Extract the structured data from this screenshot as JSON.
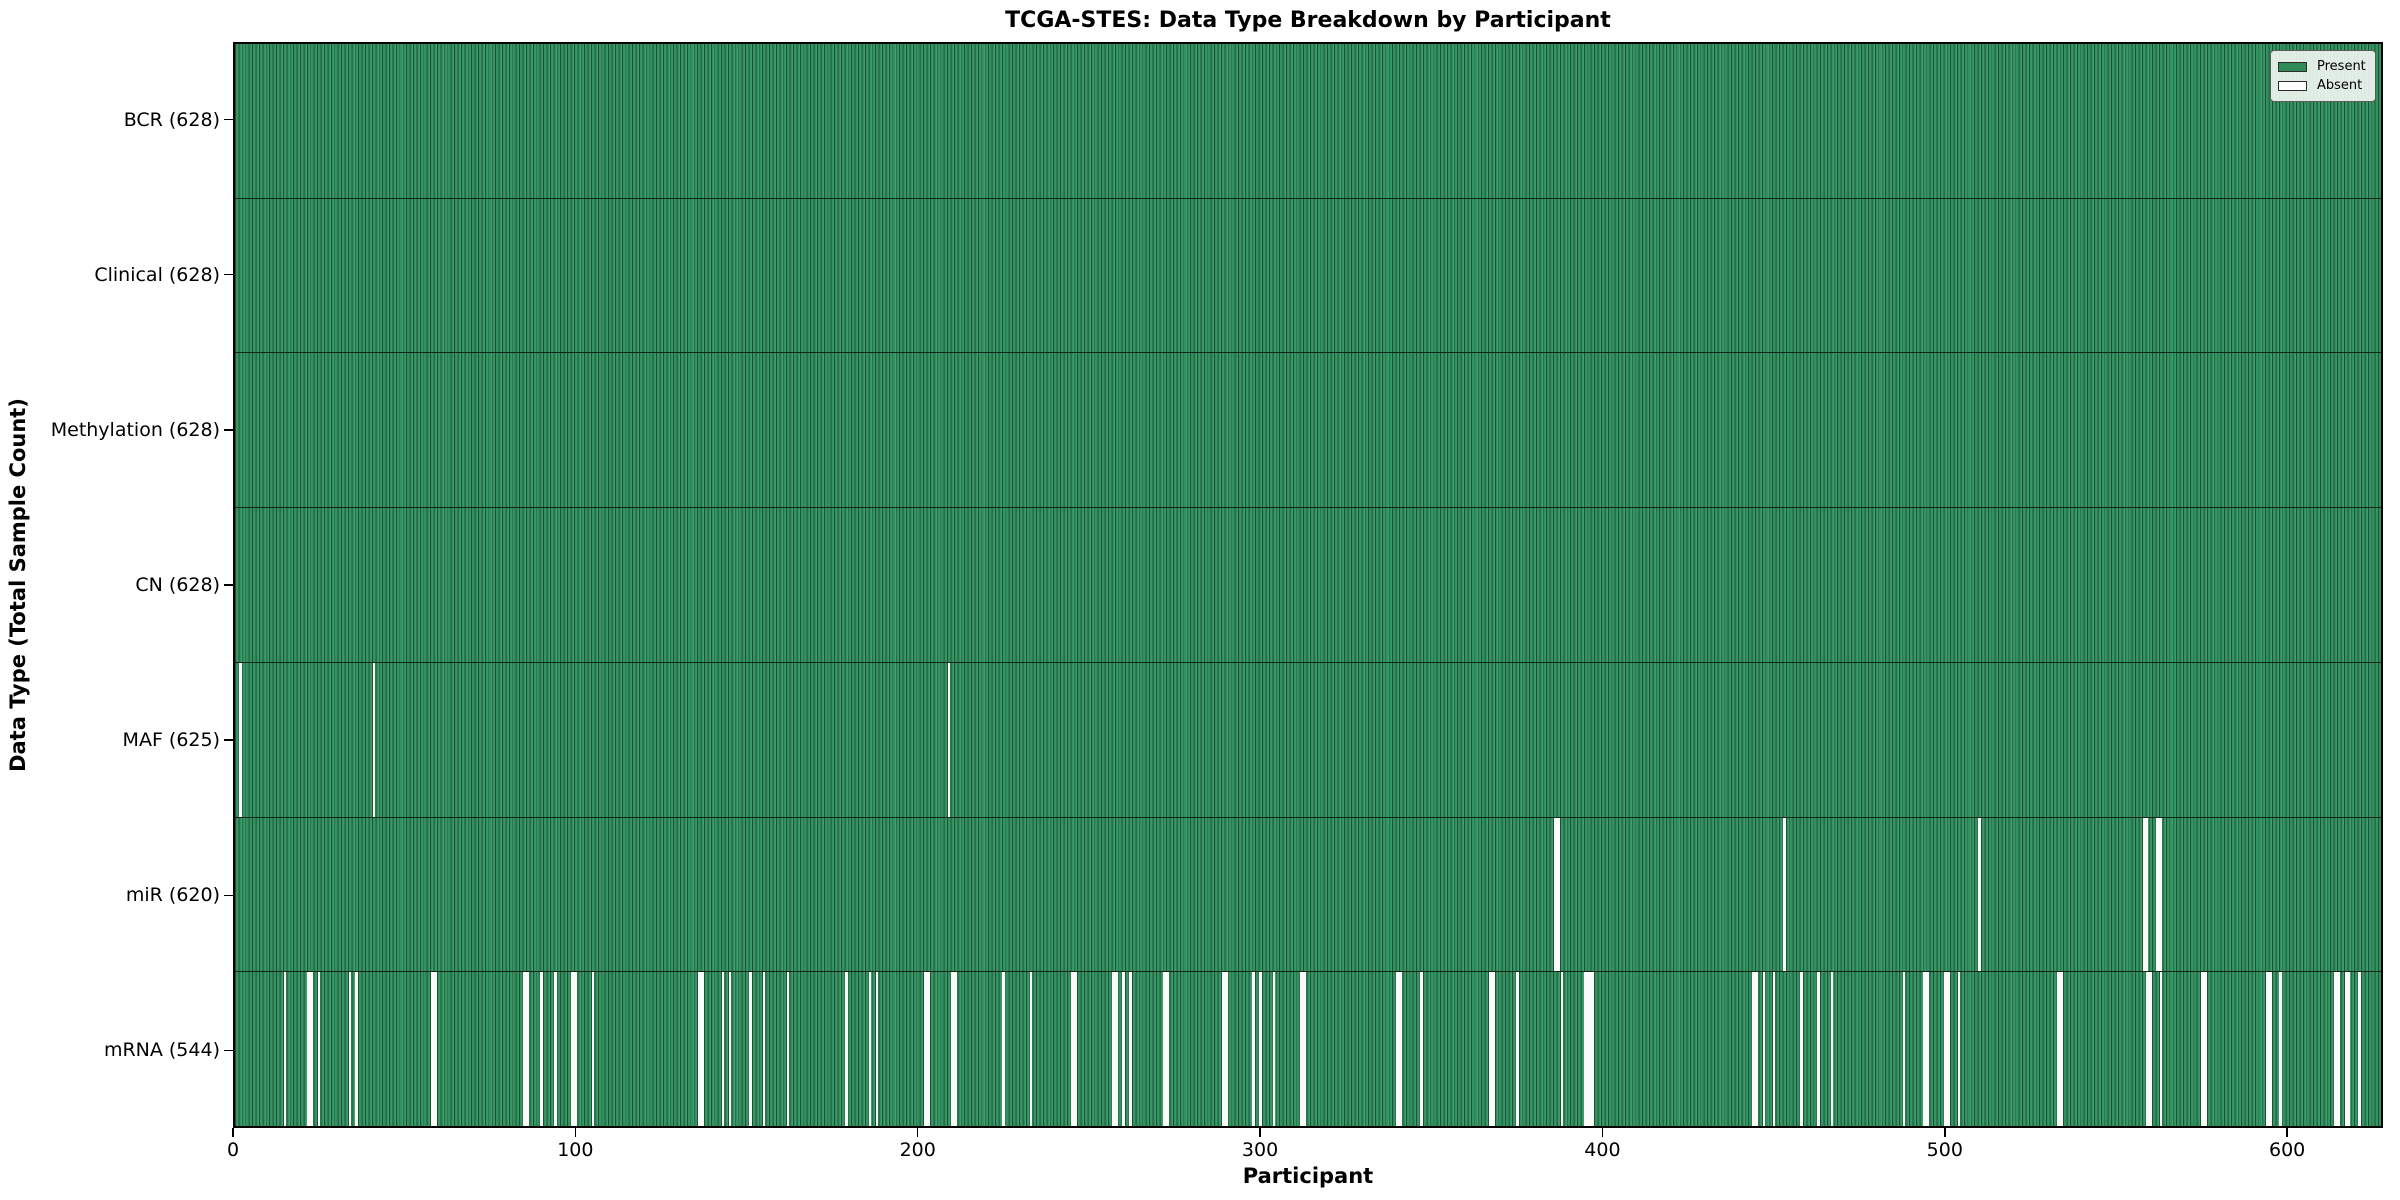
{
  "chart_data": {
    "type": "heatmap",
    "title": "TCGA-STES: Data Type Breakdown by Participant",
    "xlabel": "Participant",
    "ylabel": "Data Type (Total Sample Count)",
    "x_ticks": [
      0,
      100,
      200,
      300,
      400,
      500,
      600
    ],
    "x_range": [
      0,
      628
    ],
    "n_participants": 628,
    "grid": false,
    "legend_position": "upper right",
    "legend": [
      {
        "label": "Present",
        "color": "#2e8b57"
      },
      {
        "label": "Absent",
        "color": "#ffffff"
      }
    ],
    "colors": {
      "present_fill": "#2e8b57",
      "bar_edge": "#1c5134",
      "absent_fill": "#ffffff",
      "axes_border": "#000000"
    },
    "rows": [
      {
        "label": "BCR (628)",
        "data_type": "BCR",
        "present_count": 628,
        "absent_participants": []
      },
      {
        "label": "Clinical (628)",
        "data_type": "Clinical",
        "present_count": 628,
        "absent_participants": []
      },
      {
        "label": "Methylation (628)",
        "data_type": "Methylation",
        "present_count": 628,
        "absent_participants": []
      },
      {
        "label": "CN (628)",
        "data_type": "CN",
        "present_count": 628,
        "absent_participants": []
      },
      {
        "label": "MAF (625)",
        "data_type": "MAF",
        "present_count": 625,
        "absent_participants": [
          1,
          40,
          208
        ]
      },
      {
        "label": "miR (620)",
        "data_type": "miR",
        "present_count": 620,
        "absent_participants": [
          385,
          386,
          452,
          509,
          557,
          558,
          561,
          562
        ]
      },
      {
        "label": "mRNA (544)",
        "data_type": "mRNA",
        "present_count": 544,
        "absent_participants": [
          14,
          21,
          22,
          24,
          33,
          35,
          57,
          58,
          84,
          85,
          89,
          93,
          98,
          99,
          104,
          135,
          136,
          142,
          144,
          150,
          154,
          161,
          178,
          185,
          187,
          201,
          202,
          209,
          210,
          224,
          232,
          244,
          245,
          256,
          257,
          259,
          261,
          271,
          272,
          288,
          289,
          297,
          299,
          303,
          311,
          312,
          339,
          340,
          346,
          366,
          367,
          374,
          387,
          394,
          395,
          396,
          443,
          444,
          446,
          449,
          457,
          462,
          466,
          487,
          493,
          494,
          499,
          500,
          503,
          532,
          533,
          558,
          559,
          562,
          574,
          575,
          593,
          594,
          597,
          613,
          614,
          616,
          617,
          620
        ]
      }
    ]
  }
}
